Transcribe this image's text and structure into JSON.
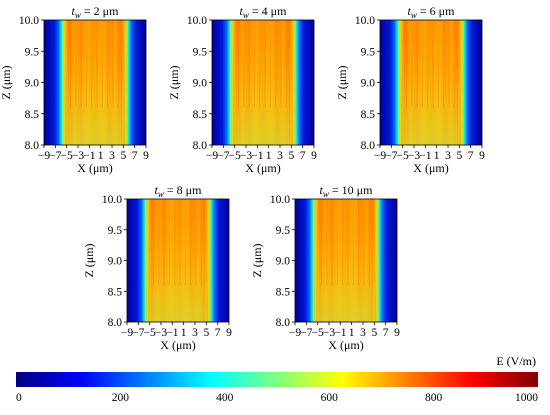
{
  "chart_data": [
    {
      "type": "heatmap",
      "title_var": "t",
      "title_sub": "w",
      "title_value": " = 2 μm",
      "xlabel": "X (μm)",
      "ylabel": "Z (μm)",
      "xlim": [
        -9,
        9
      ],
      "ylim": [
        8.0,
        10.0
      ],
      "xticks": [
        "−9",
        "−7",
        "−5",
        "−3",
        "−1",
        "1",
        "3",
        "5",
        "7",
        "9"
      ],
      "yticks": [
        "8.0",
        "8.5",
        "9.0",
        "9.5",
        "10.0"
      ],
      "band_half_width": 3.0
    },
    {
      "type": "heatmap",
      "title_var": "t",
      "title_sub": "w",
      "title_value": " = 4 μm",
      "xlabel": "X (μm)",
      "ylabel": "Z (μm)",
      "xlim": [
        -9,
        9
      ],
      "ylim": [
        8.0,
        10.0
      ],
      "xticks": [
        "−9",
        "−7",
        "−5",
        "−3",
        "−1",
        "1",
        "3",
        "5",
        "7",
        "9"
      ],
      "yticks": [
        "8.0",
        "8.5",
        "9.0",
        "9.5",
        "10.0"
      ],
      "band_half_width": 3.0
    },
    {
      "type": "heatmap",
      "title_var": "t",
      "title_sub": "w",
      "title_value": " = 6 μm",
      "xlabel": "X (μm)",
      "ylabel": "Z (μm)",
      "xlim": [
        -9,
        9
      ],
      "ylim": [
        8.0,
        10.0
      ],
      "xticks": [
        "−9",
        "−7",
        "−5",
        "−3",
        "−1",
        "1",
        "3",
        "5",
        "7",
        "9"
      ],
      "yticks": [
        "8.0",
        "8.5",
        "9.0",
        "9.5",
        "10.0"
      ],
      "band_half_width": 3.0
    },
    {
      "type": "heatmap",
      "title_var": "t",
      "title_sub": "w",
      "title_value": " = 8 μm",
      "xlabel": "X (μm)",
      "ylabel": "Z (μm)",
      "xlim": [
        -9,
        9
      ],
      "ylim": [
        8.0,
        10.0
      ],
      "xticks": [
        "−9",
        "−7",
        "−5",
        "−3",
        "−1",
        "1",
        "3",
        "5",
        "7",
        "9"
      ],
      "yticks": [
        "8.0",
        "8.5",
        "9.0",
        "9.5",
        "10.0"
      ],
      "band_half_width": 3.0
    },
    {
      "type": "heatmap",
      "title_var": "t",
      "title_sub": "w",
      "title_value": " = 10 μm",
      "xlabel": "X (μm)",
      "ylabel": "Z (μm)",
      "xlim": [
        -9,
        9
      ],
      "ylim": [
        8.0,
        10.0
      ],
      "xticks": [
        "−9",
        "−7",
        "−5",
        "−3",
        "−1",
        "1",
        "3",
        "5",
        "7",
        "9"
      ],
      "yticks": [
        "8.0",
        "8.5",
        "9.0",
        "9.5",
        "10.0"
      ],
      "band_half_width": 3.0
    }
  ],
  "colorbar": {
    "label": "E (V/m)",
    "min": 0,
    "max": 1000,
    "ticks": [
      "0",
      "200",
      "400",
      "600",
      "800",
      "1000"
    ],
    "colors": [
      "#00007f",
      "#0000ff",
      "#007fff",
      "#00ffff",
      "#7fff7f",
      "#ffff00",
      "#ff7f00",
      "#ff0000",
      "#7f0000"
    ]
  }
}
